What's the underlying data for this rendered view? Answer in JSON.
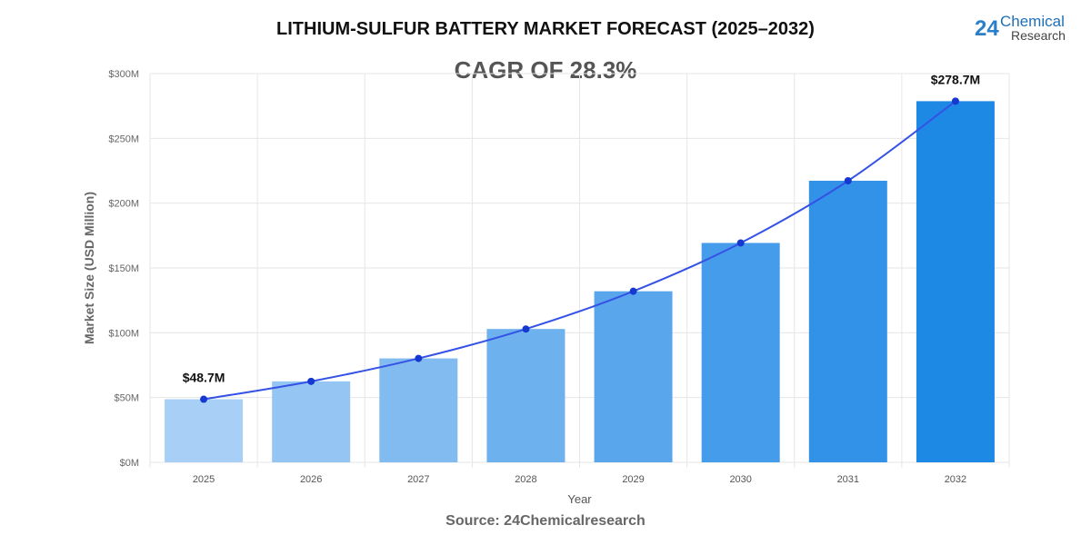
{
  "title": "LITHIUM-SULFUR BATTERY MARKET FORECAST (2025–2032)",
  "cagr": "CAGR OF 28.3%",
  "source": "Source: 24Chemicalresearch",
  "logo": {
    "number": "24",
    "line1": "Chemical",
    "line2": "Research"
  },
  "chart_data": {
    "type": "bar",
    "categories": [
      "2025",
      "2026",
      "2027",
      "2028",
      "2029",
      "2030",
      "2031",
      "2032"
    ],
    "values": [
      48.7,
      62.5,
      80.2,
      102.9,
      132.0,
      169.3,
      217.3,
      278.7
    ],
    "overlay": "line",
    "xlabel": "Year",
    "ylabel": "Market Size (USD Million)",
    "ylim": [
      0,
      300
    ],
    "yticks": [
      0,
      50,
      100,
      150,
      200,
      250,
      300
    ],
    "ytick_labels": [
      "$0M",
      "$50M",
      "$100M",
      "$150M",
      "$200M",
      "$250M",
      "$300M"
    ],
    "data_labels": [
      {
        "index": 0,
        "text": "$48.7M"
      },
      {
        "index": 7,
        "text": "$278.7M"
      }
    ],
    "grid": true,
    "colors": {
      "bar_start": "#a8cff5",
      "bar_end": "#1e88e5",
      "line": "#3552e6",
      "point": "#1538d0"
    }
  }
}
